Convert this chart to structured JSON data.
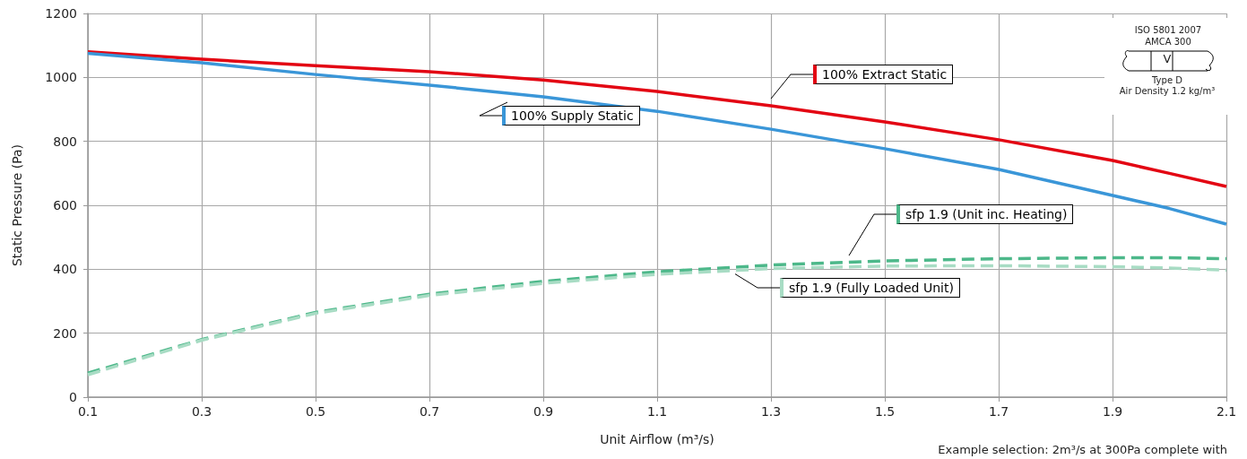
{
  "chart_data": {
    "type": "line",
    "xlabel": "Unit Airflow (m³/s)",
    "ylabel": "Static Pressure (Pa)",
    "x": [
      0.1,
      0.3,
      0.5,
      0.7,
      0.9,
      1.1,
      1.3,
      1.5,
      1.7,
      1.9,
      2.0,
      2.1
    ],
    "xlim": [
      0.1,
      2.1
    ],
    "xticks": [
      0.1,
      0.3,
      0.5,
      0.7,
      0.9,
      1.1,
      1.3,
      1.5,
      1.7,
      1.9,
      2.1
    ],
    "ylim": [
      0,
      1200
    ],
    "yticks": [
      0,
      200,
      400,
      600,
      800,
      1000,
      1200
    ],
    "grid": true,
    "legend": false,
    "marker": "none",
    "series": [
      {
        "name": "100% Extract Static",
        "color": "#e30613",
        "line_style": "solid",
        "values": [
          1080,
          1057,
          1037,
          1018,
          992,
          956,
          911,
          861,
          805,
          740,
          700,
          659
        ]
      },
      {
        "name": "100% Supply Static",
        "color": "#3a96d8",
        "line_style": "solid",
        "values": [
          1075,
          1046,
          1009,
          976,
          939,
          894,
          838,
          777,
          712,
          631,
          590,
          541
        ]
      },
      {
        "name": "sfp 1.9 (Unit inc. Heating)",
        "color": "#4db88a",
        "line_style": "dashed",
        "values": [
          75,
          180,
          265,
          322,
          362,
          392,
          413,
          426,
          433,
          436,
          436,
          433
        ]
      },
      {
        "name": "sfp 1.9 (Fully Loaded Unit)",
        "color": "#a8dcc4",
        "line_style": "dashed",
        "values": [
          70,
          178,
          262,
          318,
          356,
          384,
          402,
          410,
          411,
          408,
          404,
          397
        ]
      }
    ],
    "annotations": [
      "ISO 5801 2007",
      "AMCA 300",
      "V",
      "Type D",
      "Air Density 1.2 kg/m³",
      "Example selection: 2m³/s at 300Pa complete with"
    ]
  }
}
